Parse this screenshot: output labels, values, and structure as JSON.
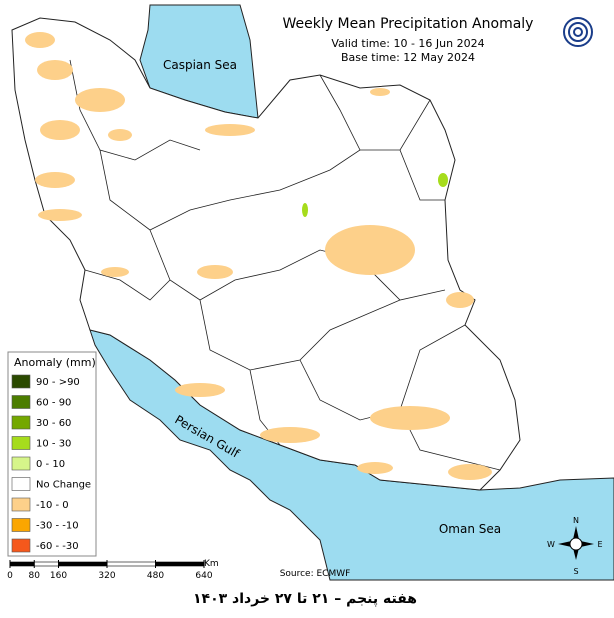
{
  "header": {
    "title": "Weekly Mean Precipitation Anomaly",
    "valid_time": "Valid time: 10 - 16 Jun 2024",
    "base_time": "Base time: 12 May 2024"
  },
  "water_labels": [
    "Caspian Sea",
    "Persian Gulf",
    "Oman Sea"
  ],
  "legend": {
    "title": "Anomaly (mm)",
    "items": [
      {
        "label": "90 - >90",
        "color": "#2b4a00"
      },
      {
        "label": "60 - 90",
        "color": "#4c7d00"
      },
      {
        "label": "30 - 60",
        "color": "#74a800"
      },
      {
        "label": "10 - 30",
        "color": "#a6dc1c"
      },
      {
        "label": "0 - 10",
        "color": "#d6f58a"
      },
      {
        "label": "No Change",
        "color": "#ffffff"
      },
      {
        "label": "-10 - 0",
        "color": "#fdd08a"
      },
      {
        "label": "-30 - -10",
        "color": "#fba600"
      },
      {
        "label": "-60 - -30",
        "color": "#f5581c"
      }
    ]
  },
  "scale": {
    "unit": "Km",
    "ticks": [
      0,
      80,
      160,
      320,
      480,
      640
    ]
  },
  "source": "Source: ECMWF",
  "compass": {
    "n": "N",
    "e": "E",
    "s": "S",
    "w": "W"
  },
  "footer": "هفته پنجم – ۲۱ تا ۲۷ خرداد ۱۴۰۳"
}
